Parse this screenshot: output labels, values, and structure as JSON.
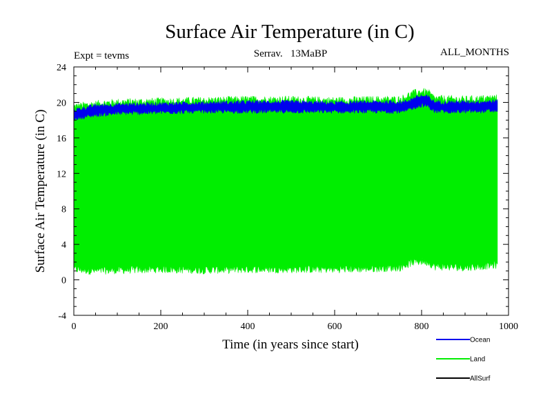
{
  "chart_data": {
    "type": "line",
    "title": "Surface Air Temperature (in C)",
    "subtitle_left": "Expt = tevms",
    "subtitle_center": "Serrav.   13MaBP",
    "subtitle_right": "ALL_MONTHS",
    "xlabel": "Time (in years since start)",
    "ylabel": "Surface Air Temperature (in C)",
    "xlim": [
      0,
      1000
    ],
    "ylim": [
      -4,
      24
    ],
    "x_ticks": [
      0,
      200,
      400,
      600,
      800,
      1000
    ],
    "y_ticks": [
      -4,
      0,
      4,
      8,
      12,
      16,
      20,
      24
    ],
    "x_tick_labels": [
      "0",
      "200",
      "400",
      "600",
      "800",
      "1000"
    ],
    "y_tick_labels": [
      "-4",
      "0",
      "4",
      "8",
      "12",
      "16",
      "20",
      "24"
    ],
    "legend_position": "bottom-right",
    "series": [
      {
        "name": "Land",
        "color": "#00ee00",
        "style": "seasonal-cycle-band",
        "x_range": [
          0,
          975
        ],
        "seasonal_max": [
          [
            0,
            19.5
          ],
          [
            50,
            19.8
          ],
          [
            100,
            20.0
          ],
          [
            200,
            20.1
          ],
          [
            300,
            20.2
          ],
          [
            400,
            20.3
          ],
          [
            500,
            20.3
          ],
          [
            600,
            20.2
          ],
          [
            700,
            20.3
          ],
          [
            750,
            20.3
          ],
          [
            780,
            21.0
          ],
          [
            800,
            21.2
          ],
          [
            815,
            21.1
          ],
          [
            830,
            20.4
          ],
          [
            900,
            20.3
          ],
          [
            975,
            20.5
          ]
        ],
        "seasonal_min": [
          [
            0,
            1.2
          ],
          [
            50,
            1.0
          ],
          [
            100,
            1.1
          ],
          [
            200,
            1.2
          ],
          [
            300,
            1.1
          ],
          [
            400,
            1.2
          ],
          [
            500,
            1.2
          ],
          [
            600,
            1.2
          ],
          [
            700,
            1.3
          ],
          [
            750,
            1.4
          ],
          [
            780,
            2.0
          ],
          [
            800,
            2.1
          ],
          [
            815,
            2.0
          ],
          [
            830,
            1.5
          ],
          [
            900,
            1.4
          ],
          [
            975,
            1.7
          ]
        ]
      },
      {
        "name": "Ocean",
        "color": "#0000ee",
        "style": "seasonal-cycle-band",
        "x_range": [
          0,
          975
        ],
        "seasonal_max": [
          [
            0,
            19.1
          ],
          [
            50,
            19.6
          ],
          [
            100,
            19.7
          ],
          [
            200,
            19.8
          ],
          [
            300,
            19.9
          ],
          [
            400,
            20.0
          ],
          [
            500,
            20.0
          ],
          [
            600,
            19.9
          ],
          [
            700,
            20.0
          ],
          [
            760,
            20.0
          ],
          [
            785,
            20.5
          ],
          [
            800,
            20.7
          ],
          [
            815,
            20.6
          ],
          [
            830,
            20.0
          ],
          [
            900,
            20.0
          ],
          [
            975,
            20.1
          ]
        ],
        "seasonal_min": [
          [
            0,
            18.2
          ],
          [
            50,
            18.6
          ],
          [
            100,
            18.8
          ],
          [
            200,
            18.9
          ],
          [
            300,
            19.0
          ],
          [
            400,
            19.0
          ],
          [
            500,
            19.0
          ],
          [
            600,
            19.0
          ],
          [
            700,
            19.0
          ],
          [
            760,
            19.0
          ],
          [
            785,
            19.5
          ],
          [
            800,
            19.7
          ],
          [
            815,
            19.6
          ],
          [
            830,
            19.0
          ],
          [
            900,
            19.0
          ],
          [
            975,
            19.1
          ]
        ]
      },
      {
        "name": "AllSurf",
        "color": "#000000",
        "style": "line",
        "x_range": [
          0,
          975
        ],
        "note": "not visible (hidden beneath the other series)"
      }
    ]
  }
}
